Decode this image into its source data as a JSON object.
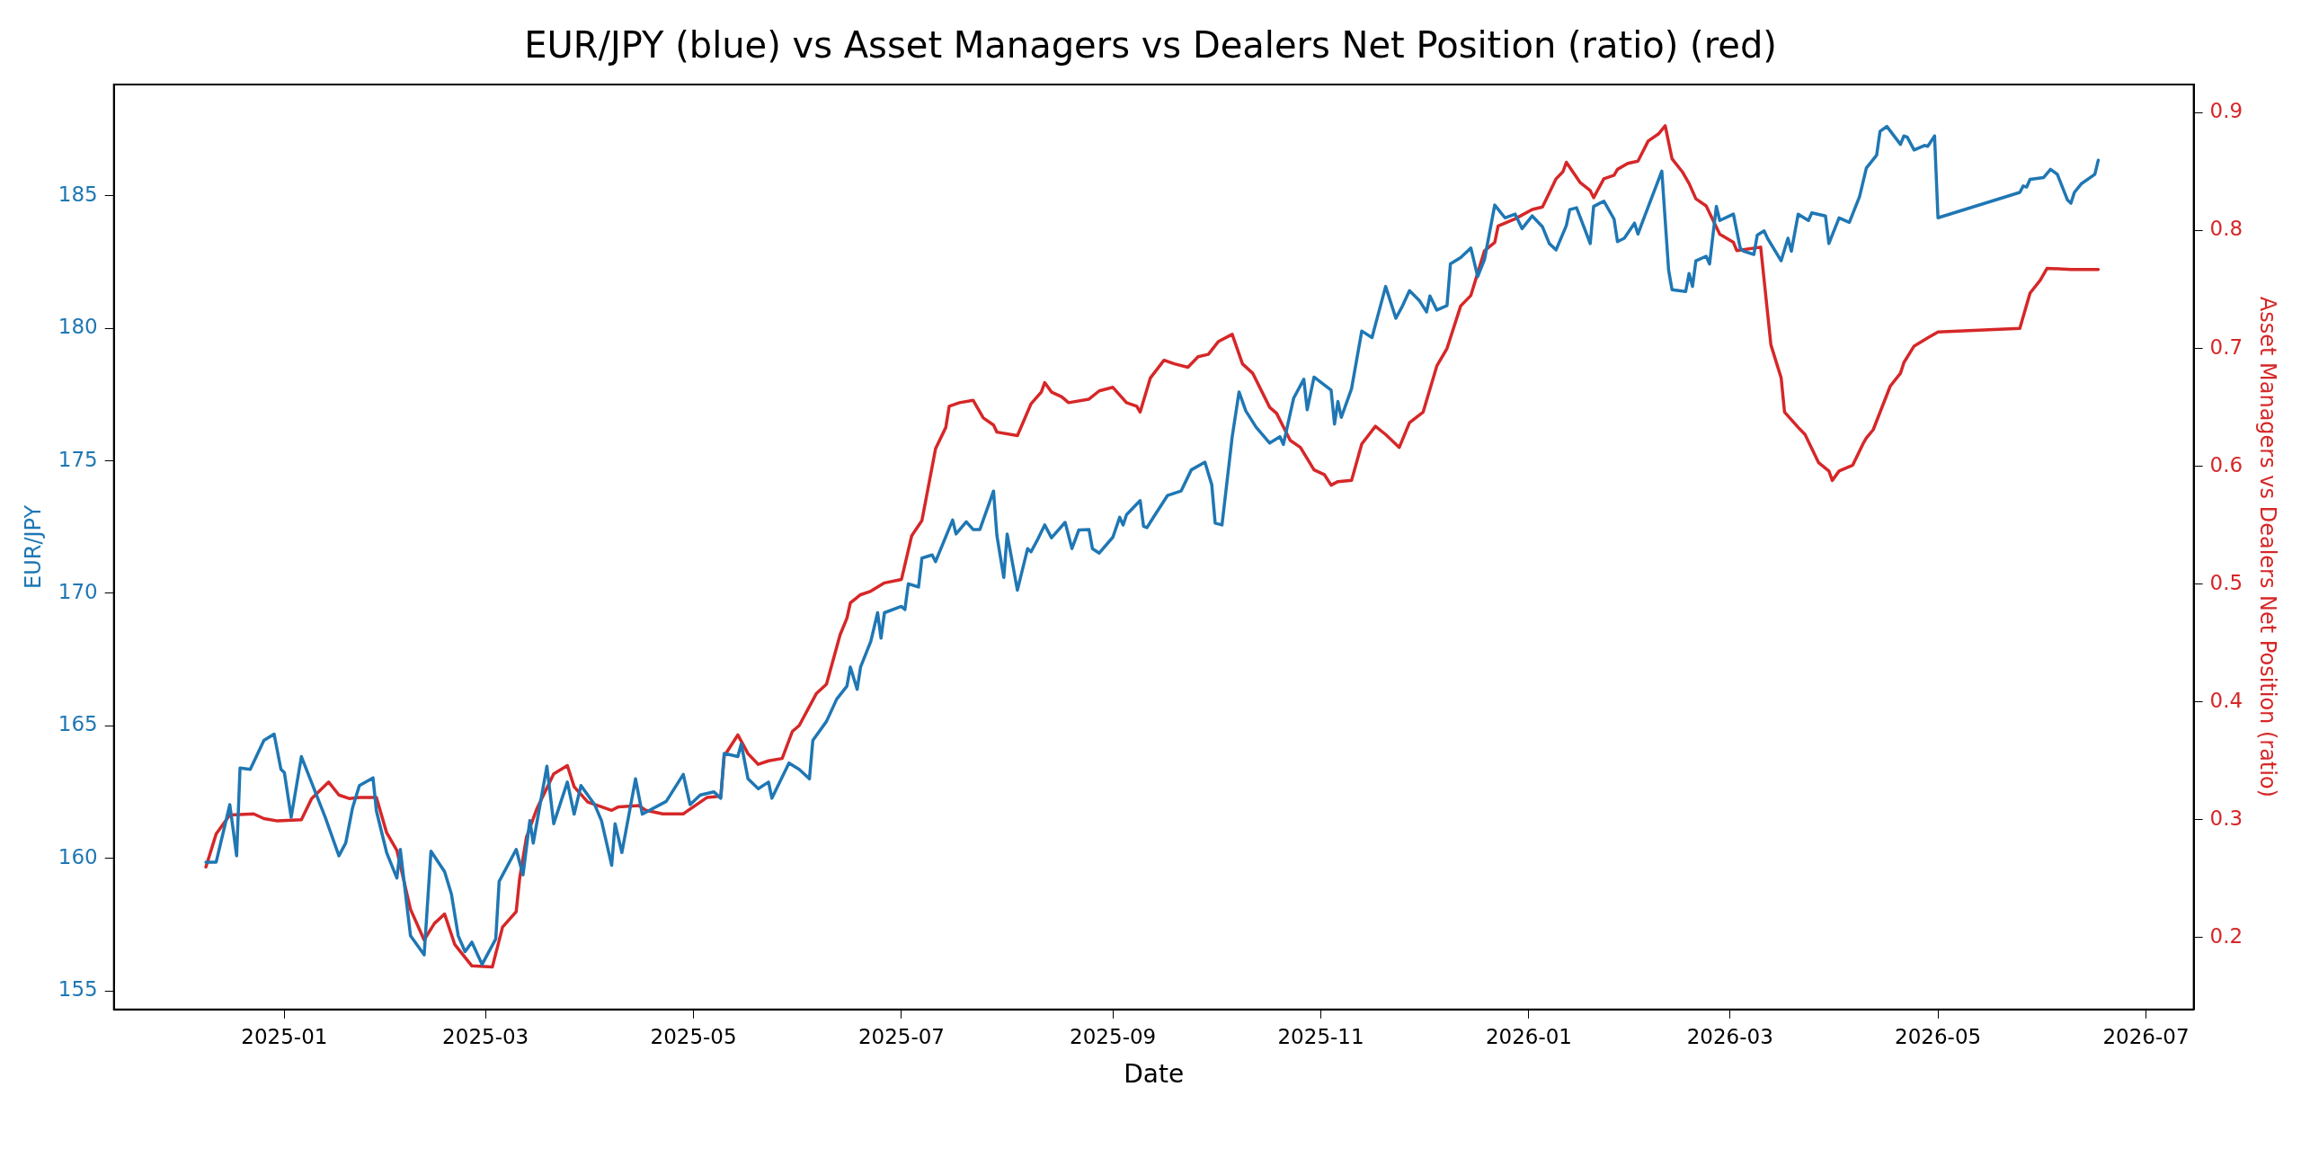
{
  "chart_data": {
    "type": "line",
    "title": "EUR/JPY (blue) vs Asset Managers vs Dealers Net Position (ratio) (red)",
    "xlabel": "Date",
    "ylabel": "EUR/JPY",
    "y2label": "Asset Managers vs Dealers Net Position (ratio)",
    "xlim": [
      "2024-11-12",
      "2026-07-15"
    ],
    "xticks": [
      "2025-01",
      "2025-03",
      "2025-05",
      "2025-07",
      "2025-09",
      "2025-11",
      "2026-01",
      "2026-03",
      "2026-05",
      "2026-07"
    ],
    "ylim": [
      154.3,
      189.2
    ],
    "yticks": [
      155,
      160,
      165,
      170,
      175,
      180,
      185
    ],
    "y2lim": [
      0.139,
      0.924
    ],
    "y2ticks": [
      0.2,
      0.3,
      0.4,
      0.5,
      0.6,
      0.7,
      0.8,
      0.9
    ],
    "grid": false,
    "legend": false,
    "marker": "none",
    "line_style": "solid",
    "series": [
      {
        "color": "#1f77b4",
        "axis": "y",
        "x": [
          "2024-12-09",
          "2024-12-12",
          "2024-12-16",
          "2024-12-18",
          "2024-12-19",
          "2024-12-22",
          "2024-12-26",
          "2024-12-29",
          "2024-12-31",
          "2025-01-01",
          "2025-01-03",
          "2025-01-06",
          "2025-01-13",
          "2025-01-17",
          "2025-01-19",
          "2025-01-21",
          "2025-01-23",
          "2025-01-27",
          "2025-01-28",
          "2025-01-31",
          "2025-02-03",
          "2025-02-04",
          "2025-02-07",
          "2025-02-11",
          "2025-02-13",
          "2025-02-17",
          "2025-02-19",
          "2025-02-21",
          "2025-02-23",
          "2025-02-25",
          "2025-02-28",
          "2025-03-04",
          "2025-03-05",
          "2025-03-10",
          "2025-03-12",
          "2025-03-14",
          "2025-03-15",
          "2025-03-19",
          "2025-03-21",
          "2025-03-25",
          "2025-03-27",
          "2025-03-29",
          "2025-04-02",
          "2025-04-04",
          "2025-04-07",
          "2025-04-08",
          "2025-04-10",
          "2025-04-14",
          "2025-04-16",
          "2025-04-23",
          "2025-04-28",
          "2025-04-30",
          "2025-05-03",
          "2025-05-07",
          "2025-05-09",
          "2025-05-10",
          "2025-05-14",
          "2025-05-15",
          "2025-05-17",
          "2025-05-20",
          "2025-05-23",
          "2025-05-24",
          "2025-05-29",
          "2025-06-01",
          "2025-06-04",
          "2025-06-05",
          "2025-06-09",
          "2025-06-12",
          "2025-06-15",
          "2025-06-16",
          "2025-06-18",
          "2025-06-19",
          "2025-06-22",
          "2025-06-24",
          "2025-06-25",
          "2025-06-26",
          "2025-07-01",
          "2025-07-02",
          "2025-07-03",
          "2025-07-06",
          "2025-07-07",
          "2025-07-10",
          "2025-07-11",
          "2025-07-16",
          "2025-07-17",
          "2025-07-20",
          "2025-07-22",
          "2025-07-24",
          "2025-07-28",
          "2025-07-29",
          "2025-07-31",
          "2025-08-01",
          "2025-08-04",
          "2025-08-07",
          "2025-08-08",
          "2025-08-10",
          "2025-08-12",
          "2025-08-14",
          "2025-08-18",
          "2025-08-20",
          "2025-08-22",
          "2025-08-25",
          "2025-08-26",
          "2025-08-28",
          "2025-09-01",
          "2025-09-03",
          "2025-09-04",
          "2025-09-05",
          "2025-09-09",
          "2025-09-10",
          "2025-09-11",
          "2025-09-13",
          "2025-09-17",
          "2025-09-21",
          "2025-09-24",
          "2025-09-28",
          "2025-09-30",
          "2025-10-01",
          "2025-10-03",
          "2025-10-06",
          "2025-10-08",
          "2025-10-10",
          "2025-10-13",
          "2025-10-17",
          "2025-10-20",
          "2025-10-21",
          "2025-10-24",
          "2025-10-27",
          "2025-10-28",
          "2025-10-30",
          "2025-11-04",
          "2025-11-05",
          "2025-11-06",
          "2025-11-07",
          "2025-11-10",
          "2025-11-13",
          "2025-11-16",
          "2025-11-17",
          "2025-11-20",
          "2025-11-23",
          "2025-11-25",
          "2025-11-27",
          "2025-11-30",
          "2025-12-02",
          "2025-12-03",
          "2025-12-05",
          "2025-12-08",
          "2025-12-09",
          "2025-12-12",
          "2025-12-15",
          "2025-12-17",
          "2025-12-19",
          "2025-12-22",
          "2025-12-25",
          "2025-12-28",
          "2025-12-30",
          "2026-01-02",
          "2026-01-05",
          "2026-01-07",
          "2026-01-09",
          "2026-01-12",
          "2026-01-13",
          "2026-01-15",
          "2026-01-19",
          "2026-01-20",
          "2026-01-23",
          "2026-01-26",
          "2026-01-27",
          "2026-01-29",
          "2026-02-01",
          "2026-02-02",
          "2026-02-04",
          "2026-02-09",
          "2026-02-11",
          "2026-02-12",
          "2026-02-16",
          "2026-02-17",
          "2026-02-18",
          "2026-02-19",
          "2026-02-22",
          "2026-02-23",
          "2026-02-25",
          "2026-02-26",
          "2026-03-02",
          "2026-03-04",
          "2026-03-05",
          "2026-03-08",
          "2026-03-09",
          "2026-03-11",
          "2026-03-12",
          "2026-03-16",
          "2026-03-18",
          "2026-03-19",
          "2026-03-21",
          "2026-03-24",
          "2026-03-25",
          "2026-03-29",
          "2026-03-30",
          "2026-04-02",
          "2026-04-05",
          "2026-04-08",
          "2026-04-10",
          "2026-04-13",
          "2026-04-14",
          "2026-04-16",
          "2026-04-20",
          "2026-04-21",
          "2026-04-22",
          "2026-04-24",
          "2026-04-27",
          "2026-04-28",
          "2026-04-30",
          "2026-05-01",
          "2026-05-25",
          "2026-05-26",
          "2026-05-27",
          "2026-05-28",
          "2026-06-01",
          "2026-06-03",
          "2026-06-05",
          "2026-06-08",
          "2026-06-09",
          "2026-06-10",
          "2026-06-12",
          "2026-06-16",
          "2026-06-17"
        ],
        "values": [
          159.86,
          159.86,
          162.03,
          160.1,
          163.41,
          163.36,
          164.45,
          164.69,
          163.36,
          163.24,
          161.55,
          163.84,
          161.55,
          160.1,
          160.58,
          161.91,
          162.75,
          163.04,
          161.79,
          160.22,
          159.26,
          160.34,
          157.08,
          156.36,
          160.27,
          159.5,
          158.65,
          157.08,
          156.48,
          156.84,
          156.0,
          156.96,
          159.13,
          160.34,
          159.38,
          161.43,
          160.58,
          163.48,
          161.31,
          162.88,
          161.67,
          162.75,
          162.03,
          161.43,
          159.74,
          161.31,
          160.22,
          163.0,
          161.67,
          162.15,
          163.17,
          162.03,
          162.39,
          162.51,
          162.27,
          163.96,
          163.84,
          164.32,
          163.0,
          162.63,
          162.88,
          162.27,
          163.6,
          163.36,
          163.0,
          164.45,
          165.17,
          166.01,
          166.5,
          167.22,
          166.38,
          167.22,
          168.19,
          169.27,
          168.31,
          169.27,
          169.51,
          169.39,
          170.36,
          170.24,
          171.33,
          171.45,
          171.2,
          172.77,
          172.24,
          172.7,
          172.41,
          172.41,
          173.86,
          172.17,
          170.6,
          172.24,
          170.12,
          171.69,
          171.57,
          172.05,
          172.58,
          172.1,
          172.68,
          171.69,
          172.39,
          172.41,
          171.69,
          171.52,
          172.12,
          172.87,
          172.58,
          172.97,
          173.5,
          172.53,
          172.48,
          172.89,
          173.69,
          173.86,
          174.66,
          174.95,
          174.1,
          172.65,
          172.58,
          175.91,
          177.6,
          176.88,
          176.27,
          175.67,
          175.91,
          175.62,
          177.36,
          178.08,
          176.93,
          178.16,
          177.67,
          176.39,
          177.24,
          176.64,
          177.72,
          179.9,
          179.65,
          180.14,
          181.58,
          180.38,
          180.86,
          181.42,
          181.03,
          180.62,
          181.22,
          180.69,
          180.86,
          182.43,
          182.67,
          183.03,
          181.95,
          182.6,
          184.65,
          184.17,
          184.31,
          183.76,
          184.24,
          183.83,
          183.2,
          182.96,
          183.88,
          184.48,
          184.55,
          183.2,
          184.6,
          184.8,
          184.12,
          183.27,
          183.4,
          183.97,
          183.56,
          184.24,
          185.93,
          182.19,
          181.46,
          181.39,
          182.07,
          181.58,
          182.55,
          182.72,
          182.43,
          184.6,
          184.07,
          184.31,
          183.03,
          182.91,
          182.79,
          183.52,
          183.68,
          183.4,
          182.55,
          183.4,
          182.91,
          184.31,
          184.07,
          184.36,
          184.24,
          183.2,
          184.17,
          184.0,
          184.97,
          186.05,
          186.53,
          187.43,
          187.62,
          186.94,
          187.26,
          187.21,
          186.73,
          186.9,
          186.87,
          187.26,
          184.17,
          185.13,
          185.37,
          185.33,
          185.62,
          185.69,
          186.0,
          185.81,
          184.84,
          184.72,
          185.13,
          185.45,
          185.81,
          186.34
        ]
      },
      {
        "color": "#d62728",
        "axis": "y2",
        "x": [
          "2024-12-09",
          "2024-12-12",
          "2024-12-16",
          "2024-12-23",
          "2024-12-26",
          "2024-12-30",
          "2025-01-06",
          "2025-01-09",
          "2025-01-14",
          "2025-01-17",
          "2025-01-20",
          "2025-01-23",
          "2025-01-28",
          "2025-01-31",
          "2025-02-03",
          "2025-02-07",
          "2025-02-11",
          "2025-02-14",
          "2025-02-17",
          "2025-02-20",
          "2025-02-25",
          "2025-03-03",
          "2025-03-06",
          "2025-03-10",
          "2025-03-11",
          "2025-03-13",
          "2025-03-16",
          "2025-03-21",
          "2025-03-25",
          "2025-03-27",
          "2025-03-31",
          "2025-04-04",
          "2025-04-07",
          "2025-04-09",
          "2025-04-15",
          "2025-04-17",
          "2025-04-22",
          "2025-04-28",
          "2025-05-03",
          "2025-05-05",
          "2025-05-09",
          "2025-05-10",
          "2025-05-12",
          "2025-05-14",
          "2025-05-17",
          "2025-05-20",
          "2025-05-23",
          "2025-05-27",
          "2025-05-30",
          "2025-06-01",
          "2025-06-06",
          "2025-06-09",
          "2025-06-13",
          "2025-06-15",
          "2025-06-16",
          "2025-06-19",
          "2025-06-22",
          "2025-06-26",
          "2025-07-01",
          "2025-07-04",
          "2025-07-07",
          "2025-07-11",
          "2025-07-14",
          "2025-07-15",
          "2025-07-18",
          "2025-07-22",
          "2025-07-25",
          "2025-07-28",
          "2025-07-29",
          "2025-08-04",
          "2025-08-08",
          "2025-08-11",
          "2025-08-12",
          "2025-08-14",
          "2025-08-17",
          "2025-08-19",
          "2025-08-25",
          "2025-08-28",
          "2025-09-01",
          "2025-09-05",
          "2025-09-08",
          "2025-09-09",
          "2025-09-12",
          "2025-09-16",
          "2025-09-19",
          "2025-09-23",
          "2025-09-26",
          "2025-09-29",
          "2025-10-02",
          "2025-10-06",
          "2025-10-09",
          "2025-10-12",
          "2025-10-17",
          "2025-10-19",
          "2025-10-23",
          "2025-10-26",
          "2025-10-30",
          "2025-11-02",
          "2025-11-04",
          "2025-11-06",
          "2025-11-10",
          "2025-11-13",
          "2025-11-17",
          "2025-11-20",
          "2025-11-24",
          "2025-11-27",
          "2025-12-01",
          "2025-12-05",
          "2025-12-08",
          "2025-12-12",
          "2025-12-15",
          "2025-12-19",
          "2025-12-22",
          "2025-12-23",
          "2025-12-28",
          "2026-01-02",
          "2026-01-05",
          "2026-01-09",
          "2026-01-11",
          "2026-01-12",
          "2026-01-16",
          "2026-01-19",
          "2026-01-20",
          "2026-01-23",
          "2026-01-26",
          "2026-01-27",
          "2026-01-30",
          "2026-02-02",
          "2026-02-05",
          "2026-02-08",
          "2026-02-10",
          "2026-02-12",
          "2026-02-15",
          "2026-02-17",
          "2026-02-19",
          "2026-02-22",
          "2026-02-26",
          "2026-03-02",
          "2026-03-03",
          "2026-03-10",
          "2026-03-13",
          "2026-03-16",
          "2026-03-17",
          "2026-03-21",
          "2026-03-23",
          "2026-03-27",
          "2026-03-30",
          "2026-03-31",
          "2026-04-02",
          "2026-04-06",
          "2026-04-09",
          "2026-04-10",
          "2026-04-12",
          "2026-04-17",
          "2026-04-20",
          "2026-04-21",
          "2026-04-24",
          "2026-04-28",
          "2026-05-01",
          "2026-05-25",
          "2026-05-28",
          "2026-05-31",
          "2026-06-02",
          "2026-06-09",
          "2026-06-17"
        ],
        "values": [
          0.26,
          0.288,
          0.304,
          0.305,
          0.301,
          0.299,
          0.3,
          0.318,
          0.332,
          0.321,
          0.318,
          0.319,
          0.319,
          0.289,
          0.274,
          0.224,
          0.198,
          0.212,
          0.22,
          0.194,
          0.176,
          0.175,
          0.209,
          0.222,
          0.25,
          0.285,
          0.309,
          0.339,
          0.346,
          0.328,
          0.315,
          0.311,
          0.308,
          0.311,
          0.312,
          0.308,
          0.305,
          0.305,
          0.315,
          0.319,
          0.32,
          0.354,
          0.363,
          0.372,
          0.356,
          0.347,
          0.35,
          0.352,
          0.375,
          0.38,
          0.407,
          0.415,
          0.457,
          0.471,
          0.484,
          0.491,
          0.494,
          0.501,
          0.504,
          0.541,
          0.554,
          0.615,
          0.633,
          0.651,
          0.654,
          0.656,
          0.641,
          0.635,
          0.629,
          0.626,
          0.653,
          0.663,
          0.671,
          0.663,
          0.659,
          0.654,
          0.657,
          0.664,
          0.667,
          0.654,
          0.651,
          0.646,
          0.675,
          0.69,
          0.687,
          0.684,
          0.693,
          0.695,
          0.706,
          0.712,
          0.687,
          0.679,
          0.65,
          0.645,
          0.622,
          0.616,
          0.597,
          0.593,
          0.584,
          0.587,
          0.588,
          0.619,
          0.634,
          0.627,
          0.616,
          0.637,
          0.646,
          0.685,
          0.7,
          0.736,
          0.745,
          0.783,
          0.79,
          0.804,
          0.81,
          0.818,
          0.82,
          0.844,
          0.85,
          0.858,
          0.841,
          0.834,
          0.828,
          0.844,
          0.847,
          0.852,
          0.857,
          0.859,
          0.876,
          0.882,
          0.889,
          0.861,
          0.85,
          0.84,
          0.827,
          0.821,
          0.797,
          0.79,
          0.783,
          0.786,
          0.703,
          0.675,
          0.646,
          0.633,
          0.627,
          0.603,
          0.596,
          0.588,
          0.596,
          0.601,
          0.619,
          0.624,
          0.631,
          0.668,
          0.679,
          0.688,
          0.702,
          0.709,
          0.714,
          0.717,
          0.747,
          0.758,
          0.768,
          0.767,
          0.767
        ]
      }
    ]
  }
}
